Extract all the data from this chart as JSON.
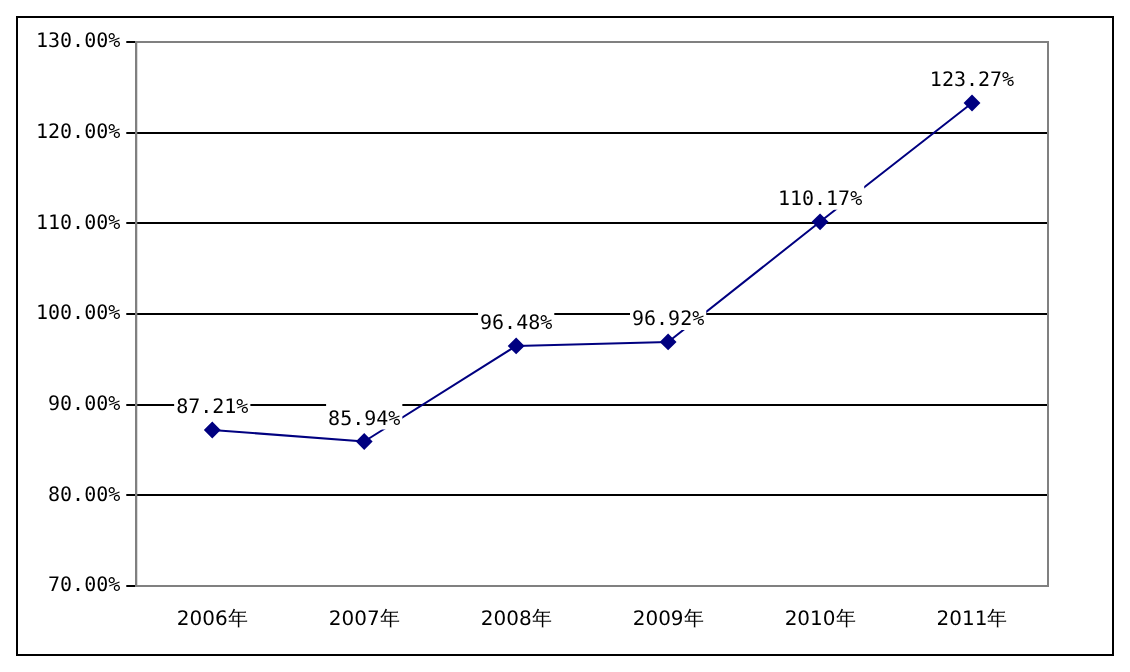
{
  "chart_data": {
    "type": "line",
    "categories": [
      "2006年",
      "2007年",
      "2008年",
      "2009年",
      "2010年",
      "2011年"
    ],
    "series": [
      {
        "color": "#000080",
        "values": [
          87.21,
          85.94,
          96.48,
          96.92,
          110.17,
          123.27
        ],
        "value_labels": [
          "87.21%",
          "85.94%",
          "96.48%",
          "96.92%",
          "110.17%",
          "123.27%"
        ]
      }
    ],
    "ylim": [
      70,
      130
    ],
    "yticks": [
      {
        "value": 70,
        "label": "70.00%"
      },
      {
        "value": 80,
        "label": "80.00%"
      },
      {
        "value": 90,
        "label": "90.00%"
      },
      {
        "value": 100,
        "label": "100.00%"
      },
      {
        "value": 110,
        "label": "110.00%"
      },
      {
        "value": 120,
        "label": "120.00%"
      },
      {
        "value": 130,
        "label": "130.00%"
      }
    ],
    "grid": "y",
    "legend": false,
    "marker": "diamond",
    "line_style": "solid"
  }
}
